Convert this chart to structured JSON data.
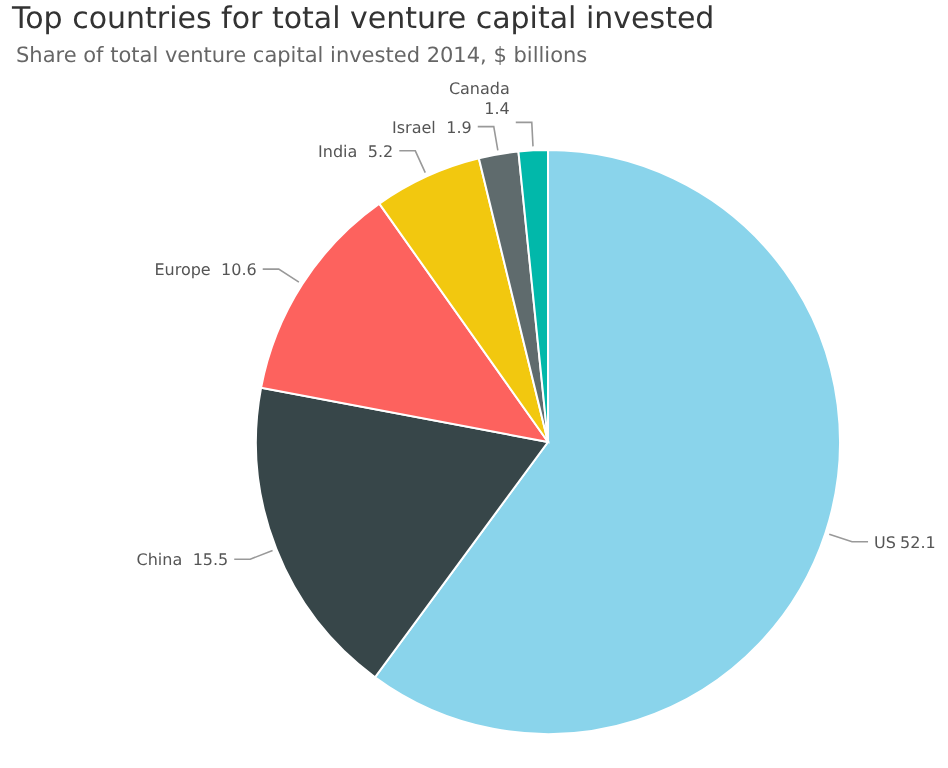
{
  "chart_data": {
    "type": "pie",
    "title": "Top countries for total venture capital invested",
    "subtitle": "Share of total venture capital invested 2014, $ billions",
    "categories": [
      "US",
      "China",
      "Europe",
      "India",
      "Israel",
      "Canada"
    ],
    "values": [
      52.1,
      15.5,
      10.6,
      5.2,
      1.9,
      1.4
    ],
    "colors": [
      "#8ad4eb",
      "#374649",
      "#fd625e",
      "#f2c80f",
      "#5f6b6d",
      "#01b8aa"
    ],
    "data_labels": true
  }
}
